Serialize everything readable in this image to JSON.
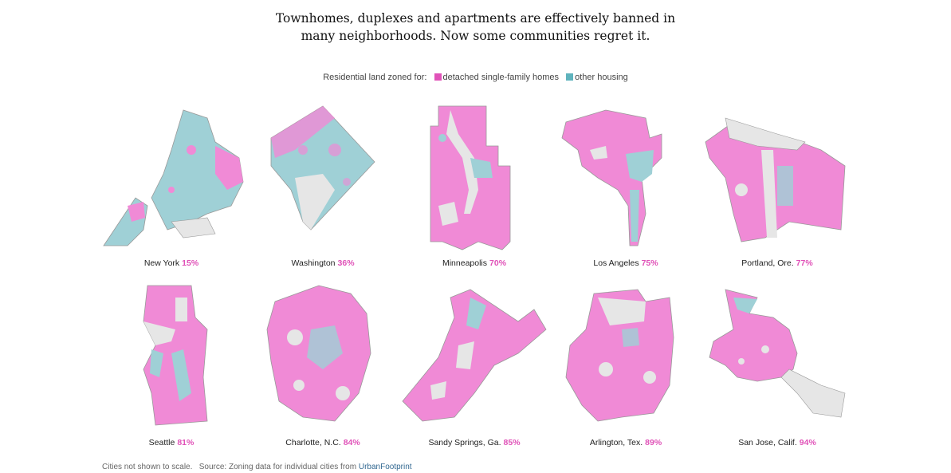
{
  "headline": {
    "line1": "Townhomes, duplexes and apartments are effectively banned in",
    "line2": "many neighborhoods. Now some communities regret it."
  },
  "legend": {
    "label": "Residential land zoned for:",
    "items": [
      {
        "label": "detached single-family homes",
        "color": "#e052b8"
      },
      {
        "label": "other housing",
        "color": "#5fb3bd"
      }
    ]
  },
  "colors": {
    "single_family": "#f08ad6",
    "single_family_dark": "#e052b8",
    "other": "#9fd0d6",
    "other_dark": "#5fb3bd",
    "land": "#e6e6e6",
    "outline": "#999999"
  },
  "cities": [
    {
      "name": "New York",
      "pct": "15%"
    },
    {
      "name": "Washington",
      "pct": "36%"
    },
    {
      "name": "Minneapolis",
      "pct": "70%"
    },
    {
      "name": "Los Angeles",
      "pct": "75%"
    },
    {
      "name": "Portland, Ore.",
      "pct": "77%"
    },
    {
      "name": "Seattle",
      "pct": "81%"
    },
    {
      "name": "Charlotte, N.C.",
      "pct": "84%"
    },
    {
      "name": "Sandy Springs, Ga.",
      "pct": "85%"
    },
    {
      "name": "Arlington, Tex.",
      "pct": "89%"
    },
    {
      "name": "San Jose, Calif.",
      "pct": "94%"
    }
  ],
  "footer": {
    "note": "Cities not shown to scale.",
    "source_prefix": "Source: Zoning data for individual cities from",
    "source_link": "UrbanFootprint"
  }
}
